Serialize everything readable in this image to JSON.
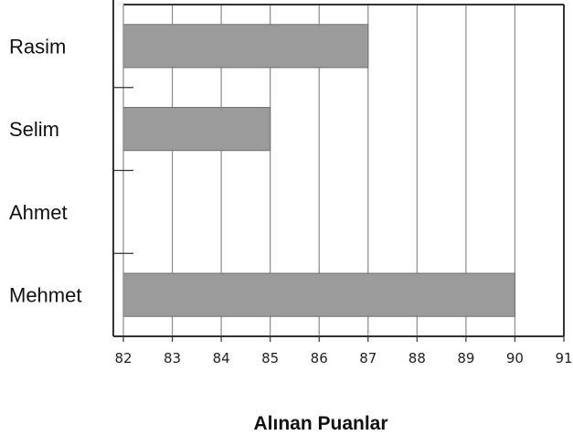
{
  "chart_data": {
    "type": "bar",
    "orientation": "horizontal",
    "categories": [
      "Rasim",
      "Selim",
      "Ahmet",
      "Mehmet"
    ],
    "values": [
      87,
      85,
      82,
      90
    ],
    "xlim": [
      82,
      91
    ],
    "xticks": [
      "82",
      "83",
      "84",
      "85",
      "86",
      "87",
      "88",
      "89",
      "90",
      "91"
    ],
    "xlabel": "Alınan Puanlar",
    "ylabel": "",
    "title": "",
    "grid": "vertical",
    "bar_color": "#9b9b9b",
    "bar_edge_color": "#6f6f6f",
    "gridline_color": "#8a8a8a",
    "axis_color": "#333333"
  }
}
